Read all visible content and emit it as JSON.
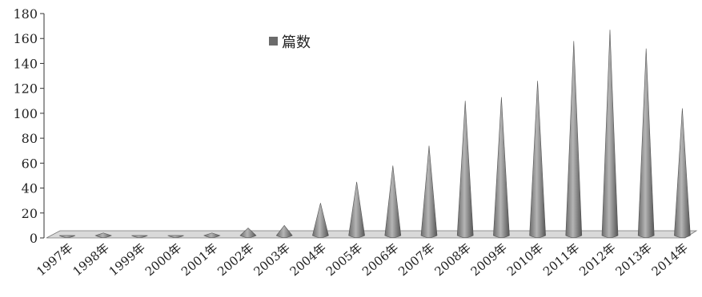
{
  "chart_data": {
    "type": "bar",
    "shape": "cone-3d",
    "categories": [
      "1997年",
      "1998年",
      "1999年",
      "2000年",
      "2001年",
      "2002年",
      "2003年",
      "2004年",
      "2005年",
      "2006年",
      "2007年",
      "2008年",
      "2009年",
      "2010年",
      "2011年",
      "2012年",
      "2013年",
      "2014年"
    ],
    "series": [
      {
        "name": "篇数",
        "values": [
          2,
          4,
          2,
          2,
          4,
          8,
          10,
          28,
          45,
          58,
          74,
          110,
          113,
          126,
          158,
          167,
          152,
          104
        ]
      }
    ],
    "ylim": [
      0,
      180
    ],
    "yticks": [
      0,
      20,
      40,
      60,
      80,
      100,
      120,
      140,
      160,
      180
    ],
    "grid": false,
    "legend_position": "top-center",
    "colors": {
      "bar": "#6b6b6b",
      "bar_highlight": "#b5b5b5",
      "floor": "#d9d9d9",
      "axis": "#333333"
    }
  }
}
